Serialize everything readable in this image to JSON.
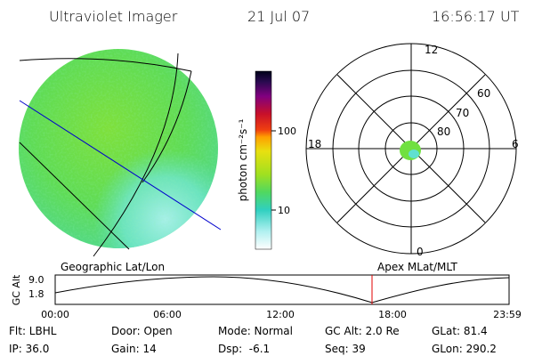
{
  "header": {
    "title": "Ultraviolet Imager",
    "date": "21 Jul 07",
    "time": "16:56:17 UT"
  },
  "left_panel": {
    "label": "Geographic Lat/Lon"
  },
  "colorbar": {
    "axis_label": "photon cm⁻²s⁻¹",
    "ticks": [
      "100",
      "10"
    ]
  },
  "polar": {
    "label": "Apex MLat/MLT",
    "mlt_labels": [
      "12",
      "18",
      "6",
      "0"
    ],
    "lat_labels": [
      "60",
      "70",
      "80"
    ]
  },
  "timeline": {
    "y_label": "GC Alt",
    "y_ticks": [
      "9.0",
      "1.8"
    ],
    "x_ticks": [
      "00:00",
      "06:00",
      "12:00",
      "18:00",
      "23:59"
    ]
  },
  "status": {
    "rows": [
      [
        "Flt: LBHL",
        "Door: Open",
        "Mode: Normal",
        "GC Alt: 2.0 Re",
        "GLat: 81.4"
      ],
      [
        "IP: 36.0",
        "Gain: 14",
        "Dsp:  -6.1",
        "Seq: 39",
        "GLon: 290.2"
      ]
    ]
  }
}
